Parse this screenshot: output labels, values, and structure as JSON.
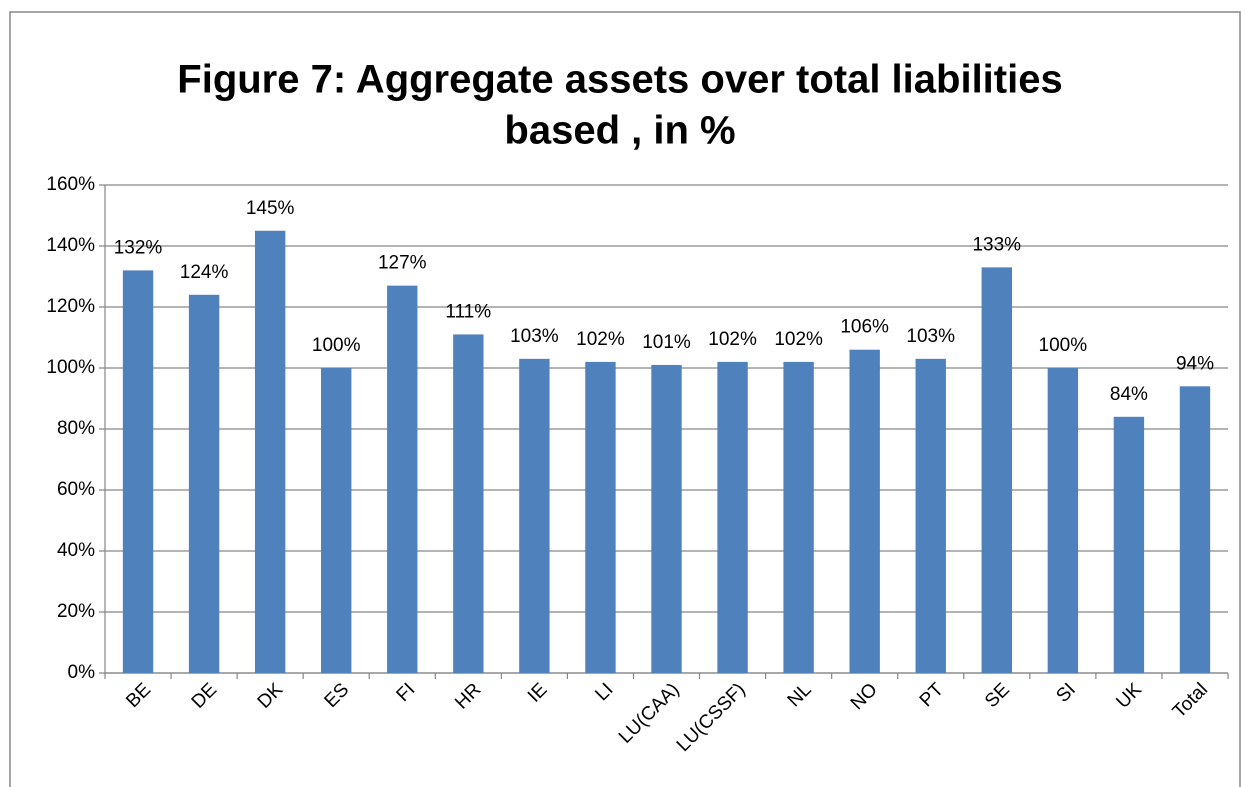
{
  "chart_data": {
    "type": "bar",
    "title": [
      "Figure 7: Aggregate assets over total liabilities",
      "based , in %"
    ],
    "categories": [
      "BE",
      "DE",
      "DK",
      "ES",
      "FI",
      "HR",
      "IE",
      "LI",
      "LU(CAA)",
      "LU(CSSF)",
      "NL",
      "NO",
      "PT",
      "SE",
      "SI",
      "UK",
      "Total"
    ],
    "values": [
      132,
      124,
      145,
      100,
      127,
      111,
      103,
      102,
      101,
      102,
      102,
      106,
      103,
      133,
      100,
      84,
      94
    ],
    "value_labels": [
      "132%",
      "124%",
      "145%",
      "100%",
      "127%",
      "111%",
      "103%",
      "102%",
      "101%",
      "102%",
      "102%",
      "106%",
      "103%",
      "133%",
      "100%",
      "84%",
      "94%"
    ],
    "color": "#4f81bd",
    "ylim": [
      0,
      160
    ],
    "yticks": [
      {
        "value": 0,
        "label": "0%"
      },
      {
        "value": 20,
        "label": "20%"
      },
      {
        "value": 40,
        "label": "40%"
      },
      {
        "value": 60,
        "label": "60%"
      },
      {
        "value": 80,
        "label": "80%"
      },
      {
        "value": 100,
        "label": "100%"
      },
      {
        "value": 120,
        "label": "120%"
      },
      {
        "value": 140,
        "label": "140%"
      },
      {
        "value": 160,
        "label": "160%"
      }
    ],
    "grid": true
  }
}
